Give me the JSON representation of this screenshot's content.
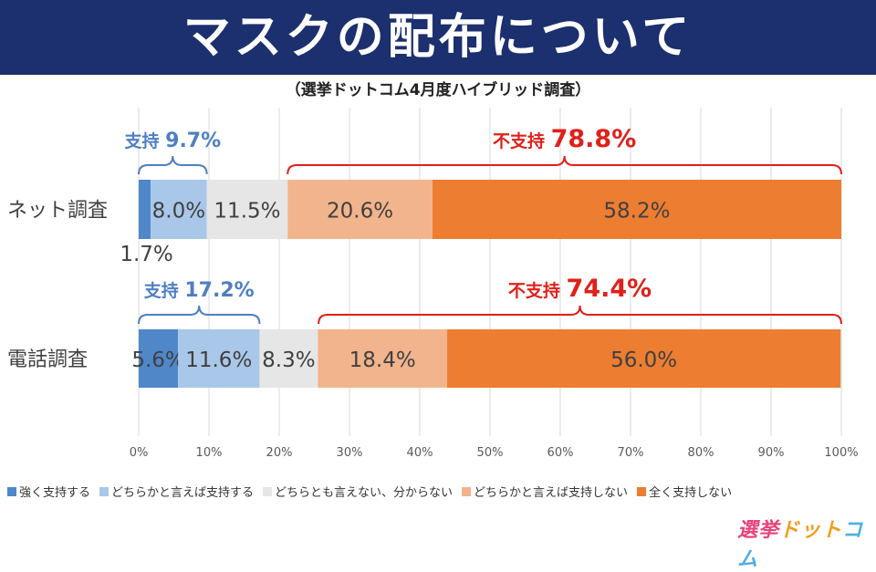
{
  "header": {
    "title": "マスクの配布について",
    "subtitle": "（選挙ドットコム4月度ハイブリッド調査）"
  },
  "chart_data": {
    "type": "bar",
    "orientation": "horizontal",
    "stacked": true,
    "title": "マスクの配布について",
    "subtitle": "（選挙ドットコム4月度ハイブリッド調査）",
    "categories": [
      "ネット調査",
      "電話調査"
    ],
    "series": [
      {
        "name": "強く支持する",
        "values": [
          1.7,
          5.6
        ],
        "labels": [
          "1.7%",
          "5.6%"
        ],
        "color": "#4f87c9"
      },
      {
        "name": "どちらかと言えば支持する",
        "values": [
          8.0,
          11.6
        ],
        "labels": [
          "8.0%",
          "11.6%"
        ],
        "color": "#a9c7e8"
      },
      {
        "name": "どちらとも言えない、分からない",
        "values": [
          11.5,
          8.3
        ],
        "labels": [
          "11.5%",
          "8.3%"
        ],
        "color": "#e6e6e6"
      },
      {
        "name": "どちらかと言えば支持しない",
        "values": [
          20.6,
          18.4
        ],
        "labels": [
          "20.6%",
          "18.4%"
        ],
        "color": "#f2b48c"
      },
      {
        "name": "全く支持しない",
        "values": [
          58.2,
          56.0
        ],
        "labels": [
          "58.2%",
          "56.0%"
        ],
        "color": "#ed7d31"
      }
    ],
    "xlim": [
      0,
      100
    ],
    "xticks": [
      "0%",
      "10%",
      "20%",
      "30%",
      "40%",
      "50%",
      "60%",
      "70%",
      "80%",
      "90%",
      "100%"
    ],
    "grid": true,
    "legend": "bottom",
    "annotations": [
      {
        "row": 0,
        "group": "support",
        "from": 0,
        "to": 9.7,
        "prefix": "支持",
        "value": "9.7%",
        "color": "#4f7fc2"
      },
      {
        "row": 0,
        "group": "oppose",
        "from": 21.2,
        "to": 100,
        "prefix": "不支持",
        "value": "78.8%",
        "color": "#e0201a"
      },
      {
        "row": 1,
        "group": "support",
        "from": 0,
        "to": 17.2,
        "prefix": "支持",
        "value": "17.2%",
        "color": "#4f7fc2"
      },
      {
        "row": 1,
        "group": "oppose",
        "from": 25.6,
        "to": 100,
        "prefix": "不支持",
        "value": "74.4%",
        "color": "#e0201a"
      }
    ]
  },
  "logo": {
    "part1": "選挙",
    "part2": "ドット",
    "part3": "コム"
  }
}
